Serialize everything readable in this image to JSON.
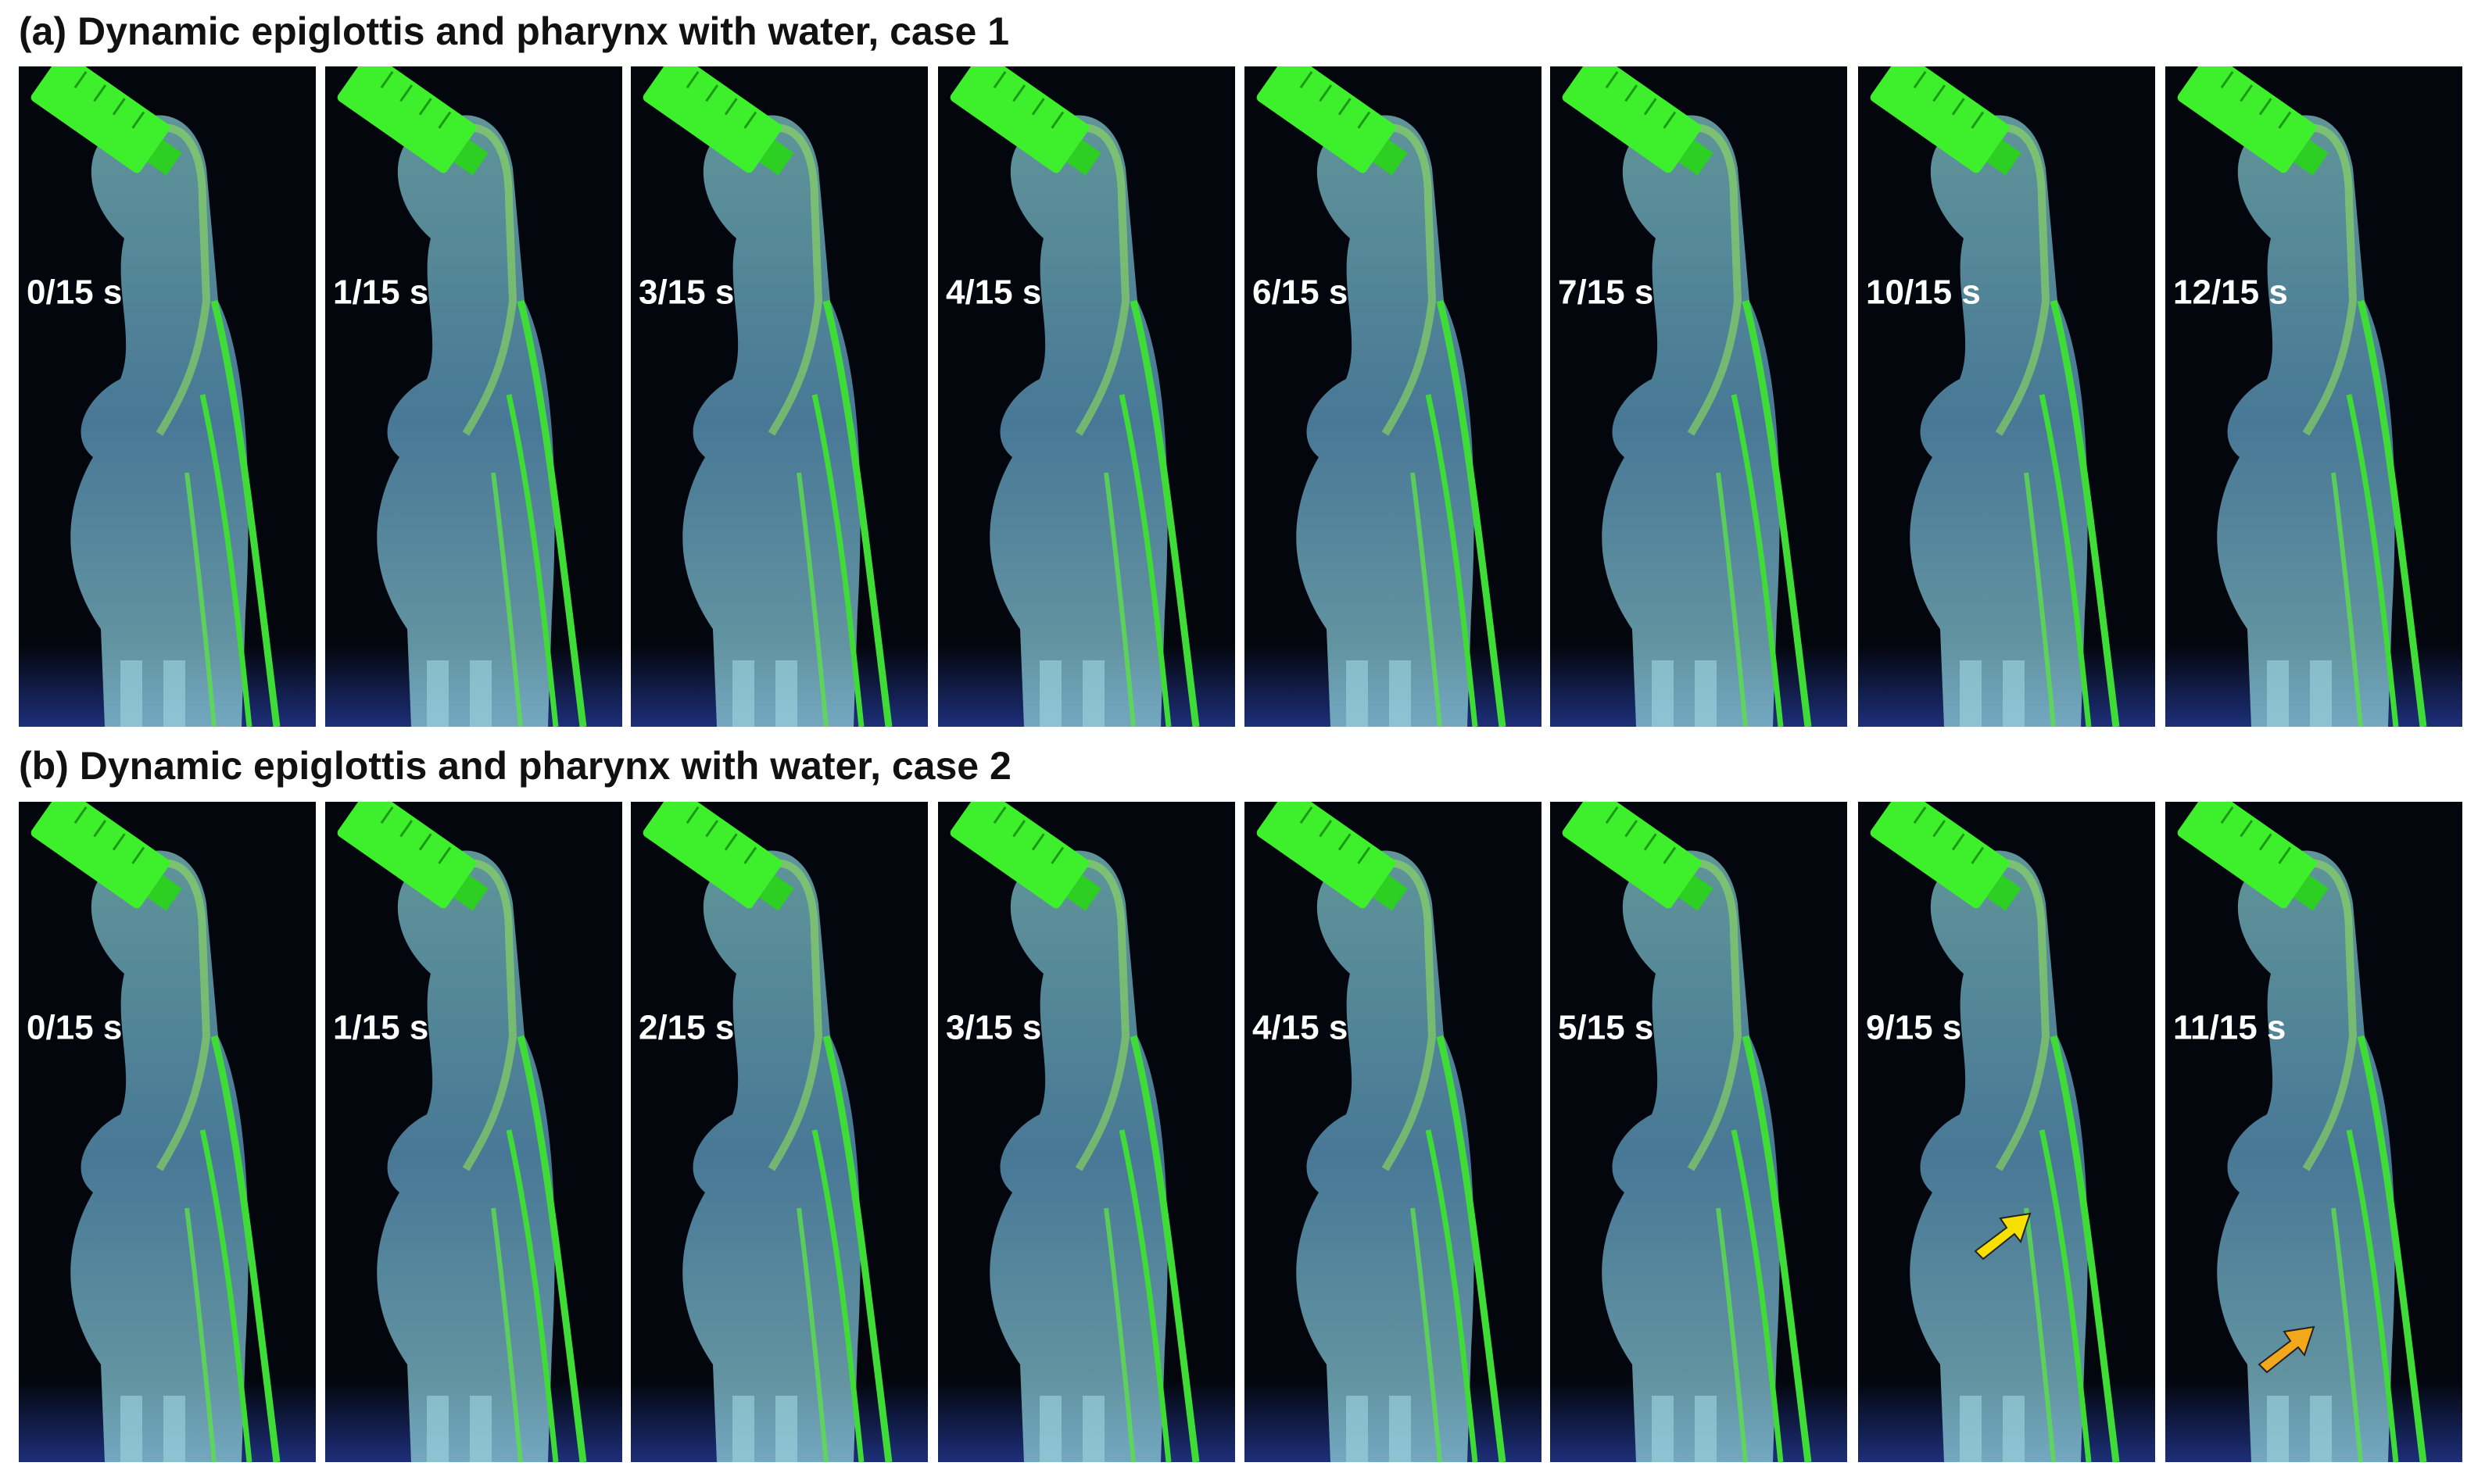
{
  "panels": [
    {
      "title": "(a) Dynamic epiglottis and pharynx with water, case 1",
      "frames": [
        {
          "label": "0/15 s"
        },
        {
          "label": "1/15 s"
        },
        {
          "label": "3/15 s"
        },
        {
          "label": "4/15 s"
        },
        {
          "label": "6/15 s"
        },
        {
          "label": "7/15 s"
        },
        {
          "label": "10/15 s"
        },
        {
          "label": "12/15 s"
        }
      ]
    },
    {
      "title": "(b) Dynamic epiglottis and pharynx with water, case 2",
      "frames": [
        {
          "label": "0/15 s"
        },
        {
          "label": "1/15 s"
        },
        {
          "label": "2/15 s"
        },
        {
          "label": "3/15 s"
        },
        {
          "label": "4/15 s"
        },
        {
          "label": "5/15 s"
        },
        {
          "label": "9/15 s"
        },
        {
          "label": "11/15 s"
        }
      ]
    }
  ]
}
